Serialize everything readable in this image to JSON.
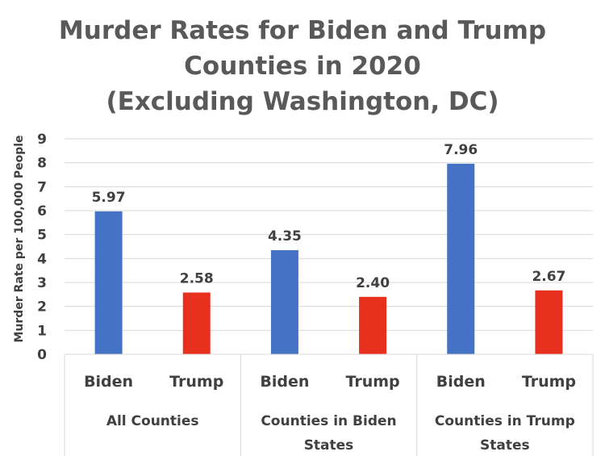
{
  "title_lines": [
    "Murder Rates for Biden and Trump",
    "Counties in 2020",
    "(Excluding Washington, DC)"
  ],
  "chart_data": {
    "type": "bar",
    "title": "Murder Rates for Biden and Trump Counties in 2020 (Excluding Washington, DC)",
    "ylabel": "Murder Rate per 100,000 People",
    "ylim": [
      0,
      9
    ],
    "yticks": [
      0,
      1,
      2,
      3,
      4,
      5,
      6,
      7,
      8,
      9
    ],
    "grid": true,
    "groups": [
      {
        "label_lines": [
          "All Counties"
        ],
        "bars": [
          {
            "label": "Biden",
            "value": 5.97,
            "value_label": "5.97",
            "color": "#4472C4"
          },
          {
            "label": "Trump",
            "value": 2.58,
            "value_label": "2.58",
            "color": "#E8301E"
          }
        ]
      },
      {
        "label_lines": [
          "Counties in Biden",
          "States"
        ],
        "bars": [
          {
            "label": "Biden",
            "value": 4.35,
            "value_label": "4.35",
            "color": "#4472C4"
          },
          {
            "label": "Trump",
            "value": 2.4,
            "value_label": "2.40",
            "color": "#E8301E"
          }
        ]
      },
      {
        "label_lines": [
          "Counties in Trump",
          "States"
        ],
        "bars": [
          {
            "label": "Biden",
            "value": 7.96,
            "value_label": "7.96",
            "color": "#4472C4"
          },
          {
            "label": "Trump",
            "value": 2.67,
            "value_label": "2.67",
            "color": "#E8301E"
          }
        ]
      }
    ]
  }
}
